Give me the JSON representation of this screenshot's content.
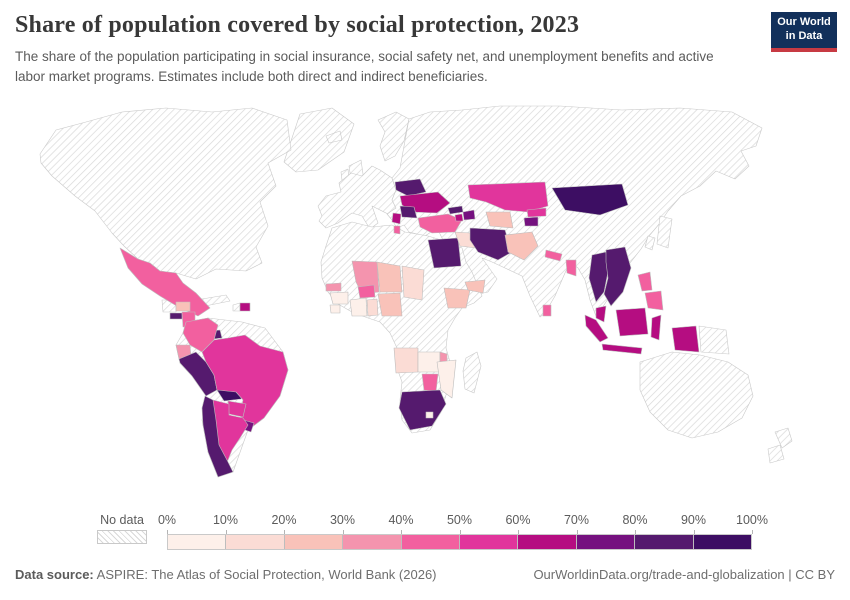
{
  "header": {
    "title": "Share of population covered by social protection, 2023",
    "subtitle": "The share of the population participating in social insurance, social safety net, and unemployment benefits and active labor market programs. Estimates include both direct and indirect beneficiaries."
  },
  "logo": {
    "line1": "Our World",
    "line2": "in Data",
    "bg_color": "#12305b",
    "accent_color": "#c73a43"
  },
  "legend": {
    "no_data_label": "No data",
    "tick_labels": [
      "0%",
      "10%",
      "20%",
      "30%",
      "40%",
      "50%",
      "60%",
      "70%",
      "80%",
      "90%",
      "100%"
    ],
    "bin_labels": [
      "0-10%",
      "10-20%",
      "20-30%",
      "30-40%",
      "40-50%",
      "50-60%",
      "60-70%",
      "70-80%",
      "80-90%",
      "90-100%"
    ],
    "bin_colors": [
      "#fdf0ea",
      "#fbdcd5",
      "#f9c2b9",
      "#f494ae",
      "#f2609f",
      "#e1359c",
      "#b50d81",
      "#75117f",
      "#551a6e",
      "#3d0e63"
    ],
    "no_data_pattern_color": "#d9d9d9"
  },
  "footer": {
    "source_label": "Data source:",
    "source_text": " ASPIRE: The Atlas of Social Protection, World Bank (2026)",
    "right_text": "OurWorldinData.org/trade-and-globalization | CC BY"
  },
  "map": {
    "regions": [
      {
        "id": "greenland",
        "name": "Greenland",
        "bin": null
      },
      {
        "id": "iceland",
        "name": "Iceland",
        "bin": null
      },
      {
        "id": "north-america",
        "name": "Canada & United States",
        "bin": null
      },
      {
        "id": "uk",
        "name": "United Kingdom",
        "bin": null
      },
      {
        "id": "ireland",
        "name": "Ireland",
        "bin": null
      },
      {
        "id": "europe-west",
        "name": "Western Europe",
        "bin": null
      },
      {
        "id": "scandinavia",
        "name": "Scandinavia",
        "bin": null
      },
      {
        "id": "eurasia",
        "name": "Russia, China, India & Middle East",
        "bin": null
      },
      {
        "id": "africa-base",
        "name": "Other Africa",
        "bin": null
      },
      {
        "id": "sa-base",
        "name": "Venezuela, Guyana & Suriname",
        "bin": null
      },
      {
        "id": "cuba",
        "name": "Cuba",
        "bin": null
      },
      {
        "id": "guatemala",
        "name": "Guatemala",
        "bin": null
      },
      {
        "id": "haiti",
        "name": "Haiti",
        "bin": null
      },
      {
        "id": "madagascar",
        "name": "Madagascar",
        "bin": null
      },
      {
        "id": "japan",
        "name": "Japan & Korea",
        "bin": null
      },
      {
        "id": "png",
        "name": "Papua New Guinea",
        "bin": null
      },
      {
        "id": "australia",
        "name": "Australia",
        "bin": null
      },
      {
        "id": "new-zealand",
        "name": "New Zealand",
        "bin": null
      },
      {
        "id": "mexico",
        "name": "Mexico",
        "bin": 4
      },
      {
        "id": "honduras",
        "name": "Honduras",
        "bin": 2
      },
      {
        "id": "el-salvador",
        "name": "El Salvador",
        "bin": 8
      },
      {
        "id": "nicaragua",
        "name": "Nicaragua",
        "bin": 4
      },
      {
        "id": "costa-rica",
        "name": "Costa Rica",
        "bin": 7
      },
      {
        "id": "panama",
        "name": "Panama",
        "bin": 8
      },
      {
        "id": "dominican-republic",
        "name": "Dominican Republic",
        "bin": 6
      },
      {
        "id": "colombia",
        "name": "Colombia",
        "bin": 4
      },
      {
        "id": "ecuador",
        "name": "Ecuador",
        "bin": 3
      },
      {
        "id": "peru",
        "name": "Peru",
        "bin": 8
      },
      {
        "id": "bolivia",
        "name": "Bolivia",
        "bin": 9
      },
      {
        "id": "brazil",
        "name": "Brazil",
        "bin": 5
      },
      {
        "id": "paraguay",
        "name": "Paraguay",
        "bin": 5
      },
      {
        "id": "uruguay",
        "name": "Uruguay",
        "bin": 7
      },
      {
        "id": "argentina",
        "name": "Argentina",
        "bin": 5
      },
      {
        "id": "chile",
        "name": "Chile",
        "bin": 8
      },
      {
        "id": "senegal",
        "name": "Senegal",
        "bin": 3
      },
      {
        "id": "mali",
        "name": "Mali",
        "bin": 3
      },
      {
        "id": "burkina-faso",
        "name": "Burkina Faso",
        "bin": 4
      },
      {
        "id": "niger",
        "name": "Niger",
        "bin": 2
      },
      {
        "id": "chad",
        "name": "Chad",
        "bin": 1
      },
      {
        "id": "guinea",
        "name": "Guinea",
        "bin": 0
      },
      {
        "id": "sierra-leone",
        "name": "Sierra Leone",
        "bin": 0
      },
      {
        "id": "cote-divoire",
        "name": "Cote d'Ivoire",
        "bin": 0
      },
      {
        "id": "ghana",
        "name": "Ghana",
        "bin": 1
      },
      {
        "id": "nigeria",
        "name": "Nigeria",
        "bin": 2
      },
      {
        "id": "ethiopia",
        "name": "Ethiopia",
        "bin": 2
      },
      {
        "id": "egypt",
        "name": "Egypt",
        "bin": 8
      },
      {
        "id": "angola",
        "name": "Angola",
        "bin": 1
      },
      {
        "id": "zambia",
        "name": "Zambia",
        "bin": 0
      },
      {
        "id": "malawi",
        "name": "Malawi",
        "bin": 3
      },
      {
        "id": "mozambique",
        "name": "Mozambique",
        "bin": 0
      },
      {
        "id": "zimbabwe",
        "name": "Zimbabwe",
        "bin": 4
      },
      {
        "id": "south-africa",
        "name": "South Africa",
        "bin": 8
      },
      {
        "id": "lesotho",
        "name": "Lesotho",
        "bin": 0
      },
      {
        "id": "belarus",
        "name": "Belarus",
        "bin": 8
      },
      {
        "id": "ukraine",
        "name": "Ukraine",
        "bin": 6
      },
      {
        "id": "romania",
        "name": "Romania",
        "bin": 8
      },
      {
        "id": "serbia",
        "name": "Serbia",
        "bin": 6
      },
      {
        "id": "albania",
        "name": "Albania",
        "bin": 4
      },
      {
        "id": "turkey",
        "name": "Turkey",
        "bin": 4
      },
      {
        "id": "georgia",
        "name": "Georgia",
        "bin": 8
      },
      {
        "id": "armenia",
        "name": "Armenia",
        "bin": 6
      },
      {
        "id": "azerbaijan",
        "name": "Azerbaijan",
        "bin": 7
      },
      {
        "id": "iraq",
        "name": "Iraq",
        "bin": 1
      },
      {
        "id": "iran",
        "name": "Iran",
        "bin": 8
      },
      {
        "id": "yemen",
        "name": "Yemen",
        "bin": 2
      },
      {
        "id": "kazakhstan",
        "name": "Kazakhstan",
        "bin": 5
      },
      {
        "id": "turkmenistan",
        "name": "Turkmenistan",
        "bin": 2
      },
      {
        "id": "kyrgyzstan",
        "name": "Kyrgyzstan",
        "bin": 5
      },
      {
        "id": "tajikistan",
        "name": "Tajikistan",
        "bin": 7
      },
      {
        "id": "pakistan",
        "name": "Pakistan",
        "bin": 2
      },
      {
        "id": "nepal",
        "name": "Nepal",
        "bin": 4
      },
      {
        "id": "bangladesh",
        "name": "Bangladesh",
        "bin": 4
      },
      {
        "id": "sri-lanka",
        "name": "Sri Lanka",
        "bin": 4
      },
      {
        "id": "mongolia",
        "name": "Mongolia",
        "bin": 9
      },
      {
        "id": "thailand",
        "name": "Thailand",
        "bin": 8
      },
      {
        "id": "vietnam-laos-cambodia",
        "name": "Vietnam, Laos & Cambodia",
        "bin": 8
      },
      {
        "id": "malaysia",
        "name": "Malaysia",
        "bin": 6
      },
      {
        "id": "indonesia",
        "name": "Indonesia",
        "bin": 6
      },
      {
        "id": "philippines",
        "name": "Philippines",
        "bin": 4
      }
    ]
  },
  "chart_data": {
    "type": "heatmap",
    "map_type": "choropleth-world-map",
    "title": "Share of population covered by social protection, 2023",
    "legend_bins": [
      "0%",
      "10%",
      "20%",
      "30%",
      "40%",
      "50%",
      "60%",
      "70%",
      "80%",
      "90%",
      "100%"
    ],
    "legend_position": "bottom",
    "no_data_style": "diagonal-hatch",
    "values": [
      {
        "country": "Mexico",
        "coverage": "40-50%"
      },
      {
        "country": "Honduras",
        "coverage": "20-30%"
      },
      {
        "country": "El Salvador",
        "coverage": "80-90%"
      },
      {
        "country": "Nicaragua",
        "coverage": "40-50%"
      },
      {
        "country": "Costa Rica",
        "coverage": "70-80%"
      },
      {
        "country": "Panama",
        "coverage": "80-90%"
      },
      {
        "country": "Dominican Republic",
        "coverage": "60-70%"
      },
      {
        "country": "Colombia",
        "coverage": "40-50%"
      },
      {
        "country": "Ecuador",
        "coverage": "30-40%"
      },
      {
        "country": "Peru",
        "coverage": "80-90%"
      },
      {
        "country": "Bolivia",
        "coverage": "90-100%"
      },
      {
        "country": "Brazil",
        "coverage": "50-60%"
      },
      {
        "country": "Paraguay",
        "coverage": "50-60%"
      },
      {
        "country": "Uruguay",
        "coverage": "70-80%"
      },
      {
        "country": "Argentina",
        "coverage": "50-60%"
      },
      {
        "country": "Chile",
        "coverage": "80-90%"
      },
      {
        "country": "Senegal",
        "coverage": "30-40%"
      },
      {
        "country": "Mali",
        "coverage": "30-40%"
      },
      {
        "country": "Burkina Faso",
        "coverage": "40-50%"
      },
      {
        "country": "Niger",
        "coverage": "20-30%"
      },
      {
        "country": "Chad",
        "coverage": "10-20%"
      },
      {
        "country": "Guinea",
        "coverage": "0-10%"
      },
      {
        "country": "Sierra Leone",
        "coverage": "0-10%"
      },
      {
        "country": "Cote d'Ivoire",
        "coverage": "0-10%"
      },
      {
        "country": "Ghana",
        "coverage": "10-20%"
      },
      {
        "country": "Nigeria",
        "coverage": "20-30%"
      },
      {
        "country": "Ethiopia",
        "coverage": "20-30%"
      },
      {
        "country": "Egypt",
        "coverage": "80-90%"
      },
      {
        "country": "Angola",
        "coverage": "10-20%"
      },
      {
        "country": "Zambia",
        "coverage": "0-10%"
      },
      {
        "country": "Malawi",
        "coverage": "30-40%"
      },
      {
        "country": "Mozambique",
        "coverage": "0-10%"
      },
      {
        "country": "Zimbabwe",
        "coverage": "40-50%"
      },
      {
        "country": "South Africa",
        "coverage": "80-90%"
      },
      {
        "country": "Lesotho",
        "coverage": "0-10%"
      },
      {
        "country": "Belarus",
        "coverage": "80-90%"
      },
      {
        "country": "Ukraine",
        "coverage": "60-70%"
      },
      {
        "country": "Romania",
        "coverage": "80-90%"
      },
      {
        "country": "Serbia",
        "coverage": "60-70%"
      },
      {
        "country": "Albania",
        "coverage": "40-50%"
      },
      {
        "country": "Turkey",
        "coverage": "40-50%"
      },
      {
        "country": "Georgia",
        "coverage": "80-90%"
      },
      {
        "country": "Armenia",
        "coverage": "60-70%"
      },
      {
        "country": "Azerbaijan",
        "coverage": "70-80%"
      },
      {
        "country": "Iraq",
        "coverage": "10-20%"
      },
      {
        "country": "Iran",
        "coverage": "80-90%"
      },
      {
        "country": "Yemen",
        "coverage": "20-30%"
      },
      {
        "country": "Kazakhstan",
        "coverage": "50-60%"
      },
      {
        "country": "Turkmenistan",
        "coverage": "20-30%"
      },
      {
        "country": "Kyrgyzstan",
        "coverage": "50-60%"
      },
      {
        "country": "Tajikistan",
        "coverage": "70-80%"
      },
      {
        "country": "Pakistan",
        "coverage": "20-30%"
      },
      {
        "country": "Nepal",
        "coverage": "40-50%"
      },
      {
        "country": "Bangladesh",
        "coverage": "40-50%"
      },
      {
        "country": "Sri Lanka",
        "coverage": "40-50%"
      },
      {
        "country": "Mongolia",
        "coverage": "90-100%"
      },
      {
        "country": "Thailand",
        "coverage": "80-90%"
      },
      {
        "country": "Vietnam",
        "coverage": "80-90%"
      },
      {
        "country": "Laos",
        "coverage": "80-90%"
      },
      {
        "country": "Cambodia",
        "coverage": "80-90%"
      },
      {
        "country": "Malaysia",
        "coverage": "60-70%"
      },
      {
        "country": "Indonesia",
        "coverage": "60-70%"
      },
      {
        "country": "Philippines",
        "coverage": "40-50%"
      }
    ]
  }
}
